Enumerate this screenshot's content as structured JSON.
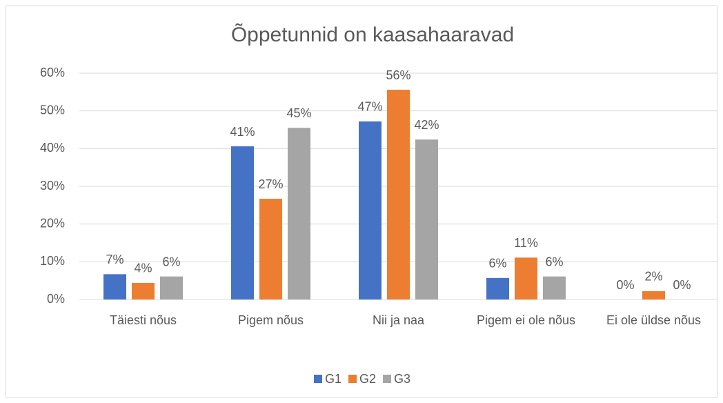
{
  "chart_data": {
    "type": "bar",
    "title": "Õppetunnid on kaasahaaravad",
    "categories": [
      "Täiesti nõus",
      "Pigem nõus",
      "Nii ja naa",
      "Pigem ei ole nõus",
      "Ei ole üldse nõus"
    ],
    "series": [
      {
        "name": "G1",
        "color": "#4472c4",
        "values": [
          6.7,
          40.6,
          47.2,
          5.7,
          0
        ],
        "value_labels": [
          "7%",
          "41%",
          "47%",
          "6%",
          "0%"
        ]
      },
      {
        "name": "G2",
        "color": "#ed7d31",
        "values": [
          4.4,
          26.7,
          55.6,
          11.1,
          2.2
        ],
        "value_labels": [
          "4%",
          "27%",
          "56%",
          "11%",
          "2%"
        ]
      },
      {
        "name": "G3",
        "color": "#a5a5a5",
        "values": [
          6.1,
          45.5,
          42.4,
          6.1,
          0
        ],
        "value_labels": [
          "6%",
          "45%",
          "42%",
          "6%",
          "0%"
        ]
      }
    ],
    "ylim": [
      0,
      60
    ],
    "yticks": [
      {
        "value": 0,
        "label": "0%"
      },
      {
        "value": 10,
        "label": "10%"
      },
      {
        "value": 20,
        "label": "20%"
      },
      {
        "value": 30,
        "label": "30%"
      },
      {
        "value": 40,
        "label": "40%"
      },
      {
        "value": 50,
        "label": "50%"
      },
      {
        "value": 60,
        "label": "60%"
      }
    ],
    "grid": true,
    "legend": "bottom"
  }
}
